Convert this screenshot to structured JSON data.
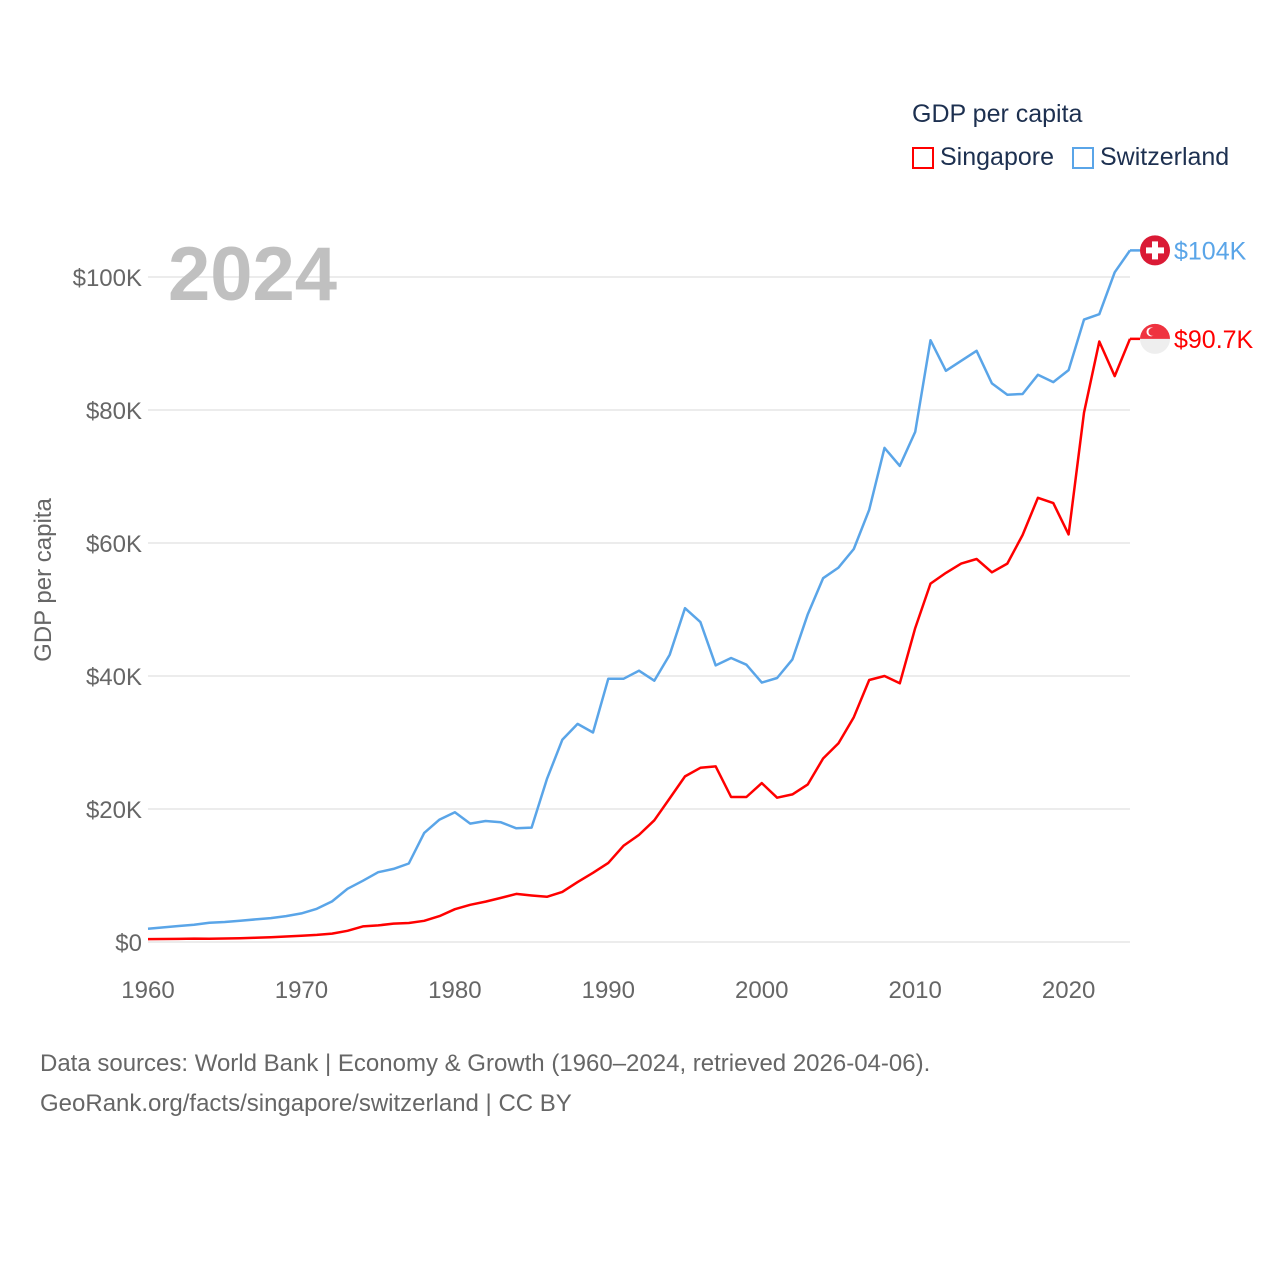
{
  "legend": {
    "title": "GDP per capita"
  },
  "footer": {
    "line1": "Data sources: World Bank | Economy & Growth (1960–2024, retrieved 2026-04-06).",
    "line2": "GeoRank.org/facts/singapore/switzerland | CC BY"
  },
  "chart_data": {
    "type": "line",
    "title": "GDP per capita",
    "year_label": "2024",
    "xlabel": "",
    "ylabel": "GDP per capita",
    "xlim": [
      1960,
      2024
    ],
    "ylim": [
      0,
      100000
    ],
    "x_ticks": [
      1960,
      1970,
      1980,
      1990,
      2000,
      2010,
      2020
    ],
    "y_ticks": [
      0,
      20000,
      40000,
      60000,
      80000,
      100000
    ],
    "y_tick_labels": [
      "$0",
      "$20K",
      "$40K",
      "$60K",
      "$80K",
      "$100K"
    ],
    "grid": true,
    "legend_position": "top-right",
    "x": [
      1960,
      1961,
      1962,
      1963,
      1964,
      1965,
      1966,
      1967,
      1968,
      1969,
      1970,
      1971,
      1972,
      1973,
      1974,
      1975,
      1976,
      1977,
      1978,
      1979,
      1980,
      1981,
      1982,
      1983,
      1984,
      1985,
      1986,
      1987,
      1988,
      1989,
      1990,
      1991,
      1992,
      1993,
      1994,
      1995,
      1996,
      1997,
      1998,
      1999,
      2000,
      2001,
      2002,
      2003,
      2004,
      2005,
      2006,
      2007,
      2008,
      2009,
      2010,
      2011,
      2012,
      2013,
      2014,
      2015,
      2016,
      2017,
      2018,
      2019,
      2020,
      2021,
      2022,
      2023,
      2024
    ],
    "series": [
      {
        "name": "Singapore",
        "color": "#ff0000",
        "end_label": "$90.7K",
        "flag": "singapore-flag",
        "values": [
          430,
          450,
          470,
          510,
          490,
          520,
          570,
          630,
          710,
          830,
          930,
          1070,
          1260,
          1690,
          2340,
          2490,
          2770,
          2850,
          3190,
          3900,
          4930,
          5600,
          6080,
          6630,
          7230,
          6990,
          6800,
          7540,
          9000,
          10400,
          11900,
          14500,
          16100,
          18300,
          21600,
          24900,
          26200,
          26400,
          21800,
          21800,
          23900,
          21700,
          22200,
          23700,
          27600,
          29900,
          33800,
          39400,
          40000,
          38900,
          47200,
          53900,
          55500,
          56900,
          57600,
          55600,
          56900,
          61200,
          66800,
          66000,
          61300,
          79600,
          90300,
          85100,
          90700
        ]
      },
      {
        "name": "Switzerland",
        "color": "#5aa5e8",
        "end_label": "$104K",
        "flag": "switzerland-flag",
        "values": [
          2000,
          2200,
          2400,
          2600,
          2900,
          3000,
          3200,
          3400,
          3600,
          3900,
          4300,
          5000,
          6100,
          8000,
          9200,
          10500,
          11000,
          11800,
          16400,
          18400,
          19500,
          17800,
          18200,
          18000,
          17100,
          17200,
          24500,
          30400,
          32800,
          31500,
          39600,
          39600,
          40800,
          39300,
          43200,
          50200,
          48100,
          41600,
          42700,
          41700,
          39000,
          39700,
          42500,
          49300,
          54700,
          56300,
          59100,
          65000,
          74300,
          71600,
          76700,
          90500,
          85900,
          87400,
          88900,
          84000,
          82300,
          82400,
          85300,
          84200,
          86000,
          93600,
          94400,
          100700,
          104000
        ]
      }
    ]
  }
}
